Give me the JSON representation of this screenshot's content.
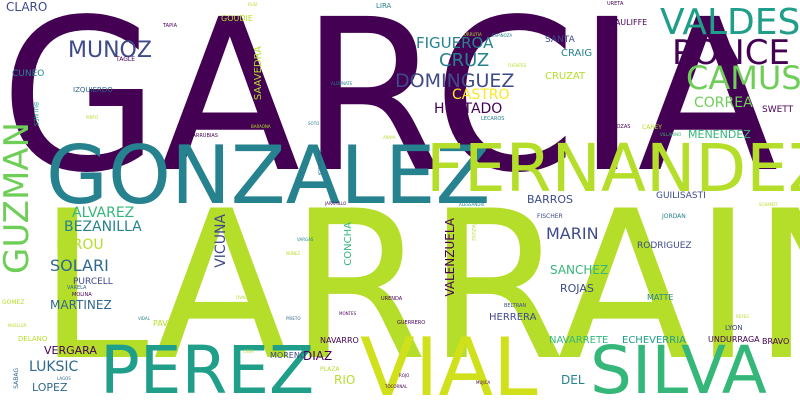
{
  "colors": {
    "dark_purple": "#440154",
    "indigo": "#3e4a89",
    "blue": "#31688e",
    "teal": "#26828e",
    "teal_green": "#1f9e89",
    "green": "#35b779",
    "light_green": "#6ece58",
    "lime": "#b5de2b",
    "yellow": "#fde725"
  },
  "words": [
    "GARCIA",
    "LARRAIN",
    "GONZALEZ",
    "FERNANDEZ",
    "PEREZ",
    "VIAL",
    "SILVA",
    "VALDES",
    "PONCE",
    "CAMUS",
    "GUZMAN",
    "MUNOZ",
    "DOMINGUEZ",
    "FIGUEROA",
    "CRUZ",
    "CASTRO",
    "HURTADO",
    "CORREA",
    "GANA",
    "MENENDEZ",
    "SWETT",
    "ALVAREZ",
    "BEZANILLA",
    "SOLARI",
    "LEROU",
    "VICUNA",
    "MARIN",
    "BARROS",
    "SANCHEZ",
    "ROJAS",
    "VALENZUELA",
    "MARTINEZ",
    "PURCELL",
    "CONCHA",
    "RODRIGUEZ",
    "GUILISASTI",
    "HERRERA",
    "NAVARRETE",
    "ECHEVERRIA",
    "VERGARA",
    "LUKSIC",
    "LOPEZ",
    "DIAZ",
    "RIO",
    "DEL",
    "NAVARRO",
    "MORENO",
    "PAVEZ",
    "CLARO",
    "CUNEO",
    "SAAVEDRA",
    "GOUDIE",
    "SANTA",
    "CRAIG",
    "CRUZAT",
    "MACAULIFFE",
    "IZQUIERDO",
    "MATTE",
    "BRAVO",
    "UNDURRAGA",
    "LYON",
    "GARDEWEG",
    "TAGLE",
    "LIRA",
    "TAPIA",
    "URETA",
    "BULNES",
    "CAREY",
    "COVARRUBIAS",
    "FISCHER",
    "JORDAN",
    "GOMEZ",
    "BELTRAN",
    "URENDA",
    "GUERRERO",
    "VARELA",
    "MOLINA",
    "DELANO",
    "SABAG",
    "ROZAS",
    "LECAROS",
    "VILLARINO",
    "MUELLER",
    "JARAMILLO",
    "PRIETO",
    "OSSA",
    "VIDAL",
    "REYES",
    "ARAYA",
    "PLAZA",
    "ROJO",
    "MAGGI",
    "ERRAZURIZ",
    "SALAMANCA",
    "OVALLE",
    "VARGAS",
    "ALDUNATE",
    "FUENTES",
    "ESPINOZA",
    "SCHMIDT",
    "ALESSANDRI",
    "BARAONA",
    "TOCORNAL",
    "MUJICA",
    "NUNEZ",
    "PINTO",
    "LAGOS",
    "RUIZ",
    "SOTO",
    "URRUTIA",
    "MONTES",
    "ORTIZ"
  ]
}
